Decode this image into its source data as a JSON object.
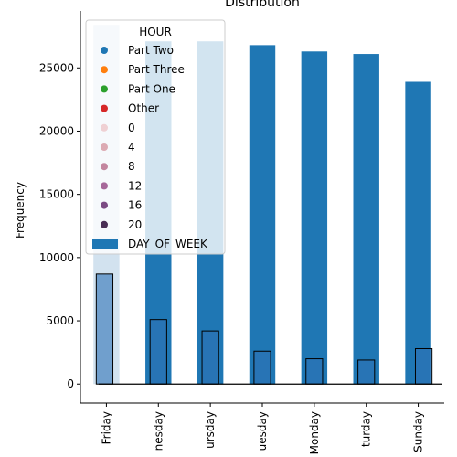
{
  "chart_data": {
    "type": "bar",
    "title": "Distribution",
    "xlabel": "",
    "ylabel": "Frequency",
    "ylim": [
      -1500,
      29500
    ],
    "yticks": [
      0,
      5000,
      10000,
      15000,
      20000,
      25000
    ],
    "categories": [
      "Friday",
      "Wednesday",
      "Thursday",
      "Tuesday",
      "Monday",
      "Saturday",
      "Sunday"
    ],
    "category_labels_visible": [
      "Friday",
      "nesday",
      "ursday",
      "uesday",
      "Monday",
      "turday",
      "Sunday"
    ],
    "series": [
      {
        "name": "DAY_OF_WEEK",
        "color": "#1f77b4",
        "values": [
          28400,
          27100,
          27100,
          26800,
          26300,
          26100,
          23900
        ]
      },
      {
        "color": "#2f73b6",
        "values": [
          8700,
          5100,
          4200,
          2600,
          2000,
          1900,
          2800
        ]
      }
    ],
    "grid": false,
    "legend": {
      "placement": "top-left",
      "title": "HOUR",
      "entries": [
        {
          "label": "Part Two",
          "marker": "dot",
          "color": "#1f77b4"
        },
        {
          "label": "Part Three",
          "marker": "dot",
          "color": "#ff7f0e"
        },
        {
          "label": "Part One",
          "marker": "dot",
          "color": "#2ca02c"
        },
        {
          "label": "Other",
          "marker": "dot",
          "color": "#d62728"
        },
        {
          "label": "0",
          "marker": "dot",
          "color": "#efd0d3"
        },
        {
          "label": "4",
          "marker": "dot",
          "color": "#dcaab3"
        },
        {
          "label": "8",
          "marker": "dot",
          "color": "#c3869f"
        },
        {
          "label": "12",
          "marker": "dot",
          "color": "#a6689a"
        },
        {
          "label": "16",
          "marker": "dot",
          "color": "#7b4b83"
        },
        {
          "label": "20",
          "marker": "dot",
          "color": "#4a2e55"
        },
        {
          "label": "DAY_OF_WEEK",
          "marker": "bar",
          "color": "#1f77b4"
        }
      ]
    }
  }
}
